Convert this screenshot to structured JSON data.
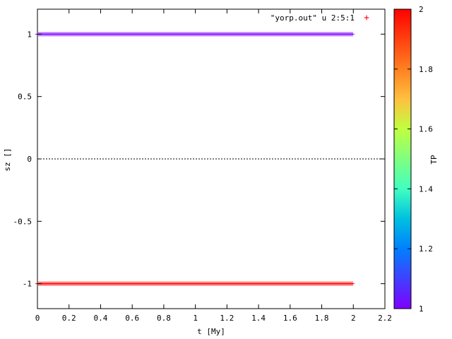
{
  "chart_data": {
    "type": "scatter",
    "title": "",
    "xlabel": "t [My]",
    "ylabel": "sz []",
    "xlim": [
      0,
      2.2
    ],
    "ylim": [
      -1.2,
      1.2
    ],
    "xticks": [
      "0",
      "0.2",
      "0.4",
      "0.6",
      "0.8",
      "1",
      "1.2",
      "1.4",
      "1.6",
      "1.8",
      "2",
      "2.2"
    ],
    "yticks": [
      "-1",
      "-0.5",
      "0",
      "0.5",
      "1"
    ],
    "xtick_values": [
      0,
      0.2,
      0.4,
      0.6,
      0.8,
      1.0,
      1.2,
      1.4,
      1.6,
      1.8,
      2.0,
      2.2
    ],
    "ytick_values": [
      -1,
      -0.5,
      0,
      0.5,
      1
    ],
    "zero_line": true,
    "legend": {
      "label": "\"yorp.out\" u 2:5:1",
      "symbol": "+",
      "placement": "top-right"
    },
    "colorbar": {
      "label": "TP",
      "range": [
        1,
        2
      ],
      "ticks": [
        "1",
        "1.2",
        "1.4",
        "1.6",
        "1.8",
        "2"
      ],
      "tick_values": [
        1,
        1.2,
        1.4,
        1.6,
        1.8,
        2
      ]
    },
    "series": [
      {
        "tp": 1,
        "color": "#7f00ff",
        "y": 1,
        "x_range": [
          0,
          2.0
        ]
      },
      {
        "tp": 2,
        "color": "#ff0000",
        "y": -1,
        "x_range": [
          0,
          2.0
        ]
      }
    ],
    "colormap": [
      "#7f00ff",
      "#4040ff",
      "#0080ff",
      "#00c0e0",
      "#40ffc0",
      "#80ff80",
      "#c0ff40",
      "#ffc040",
      "#ff8020",
      "#ff4010",
      "#ff0000"
    ]
  }
}
